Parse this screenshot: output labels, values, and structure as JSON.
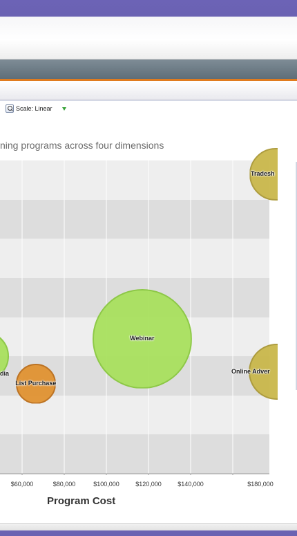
{
  "toolbar": {
    "scale_label": "Scale: Linear",
    "zoom_icon": "zoom-icon",
    "scale_caret_icon": "triangle-down-icon"
  },
  "chart_data": {
    "type": "scatter",
    "subtitle_visible": "ning programs across four dimensions",
    "xlabel": "Program Cost",
    "x_tick_labels": [
      "$60,000",
      "$80,000",
      "$100,000",
      "$120,000",
      "$140,000",
      "$180,000"
    ],
    "x_ticks": [
      60000,
      80000,
      100000,
      120000,
      140000,
      180000
    ],
    "xlim_visible": [
      42000,
      182000
    ],
    "grid": true,
    "bubbles": [
      {
        "label": "Webinar",
        "x": 117000,
        "y_band_from_top": 4.55,
        "size": 1.0,
        "color": "#a6e05a",
        "stroke": "#86c63a"
      },
      {
        "label": "List Purchase",
        "x": 66500,
        "y_band_from_top": 5.7,
        "size": 0.16,
        "color": "#e0902c",
        "stroke": "#b96a14"
      },
      {
        "label": "Online Adver",
        "x": 181000,
        "y_band_from_top": 5.4,
        "size": 0.32,
        "color": "#c8b646",
        "stroke": "#a89530"
      },
      {
        "label": "Tradesh",
        "x": 180500,
        "y_band_from_top": 0.35,
        "size": 0.28,
        "color": "#c8b646",
        "stroke": "#a89530"
      },
      {
        "label": "dia",
        "x": 42000,
        "y_band_from_top": 5.0,
        "size": 0.25,
        "color": "#a6e05a",
        "stroke": "#86c63a"
      }
    ],
    "colors": {
      "band_light": "#eeeeee",
      "band_dark": "#dddddd",
      "grid": "#ffffff"
    }
  }
}
